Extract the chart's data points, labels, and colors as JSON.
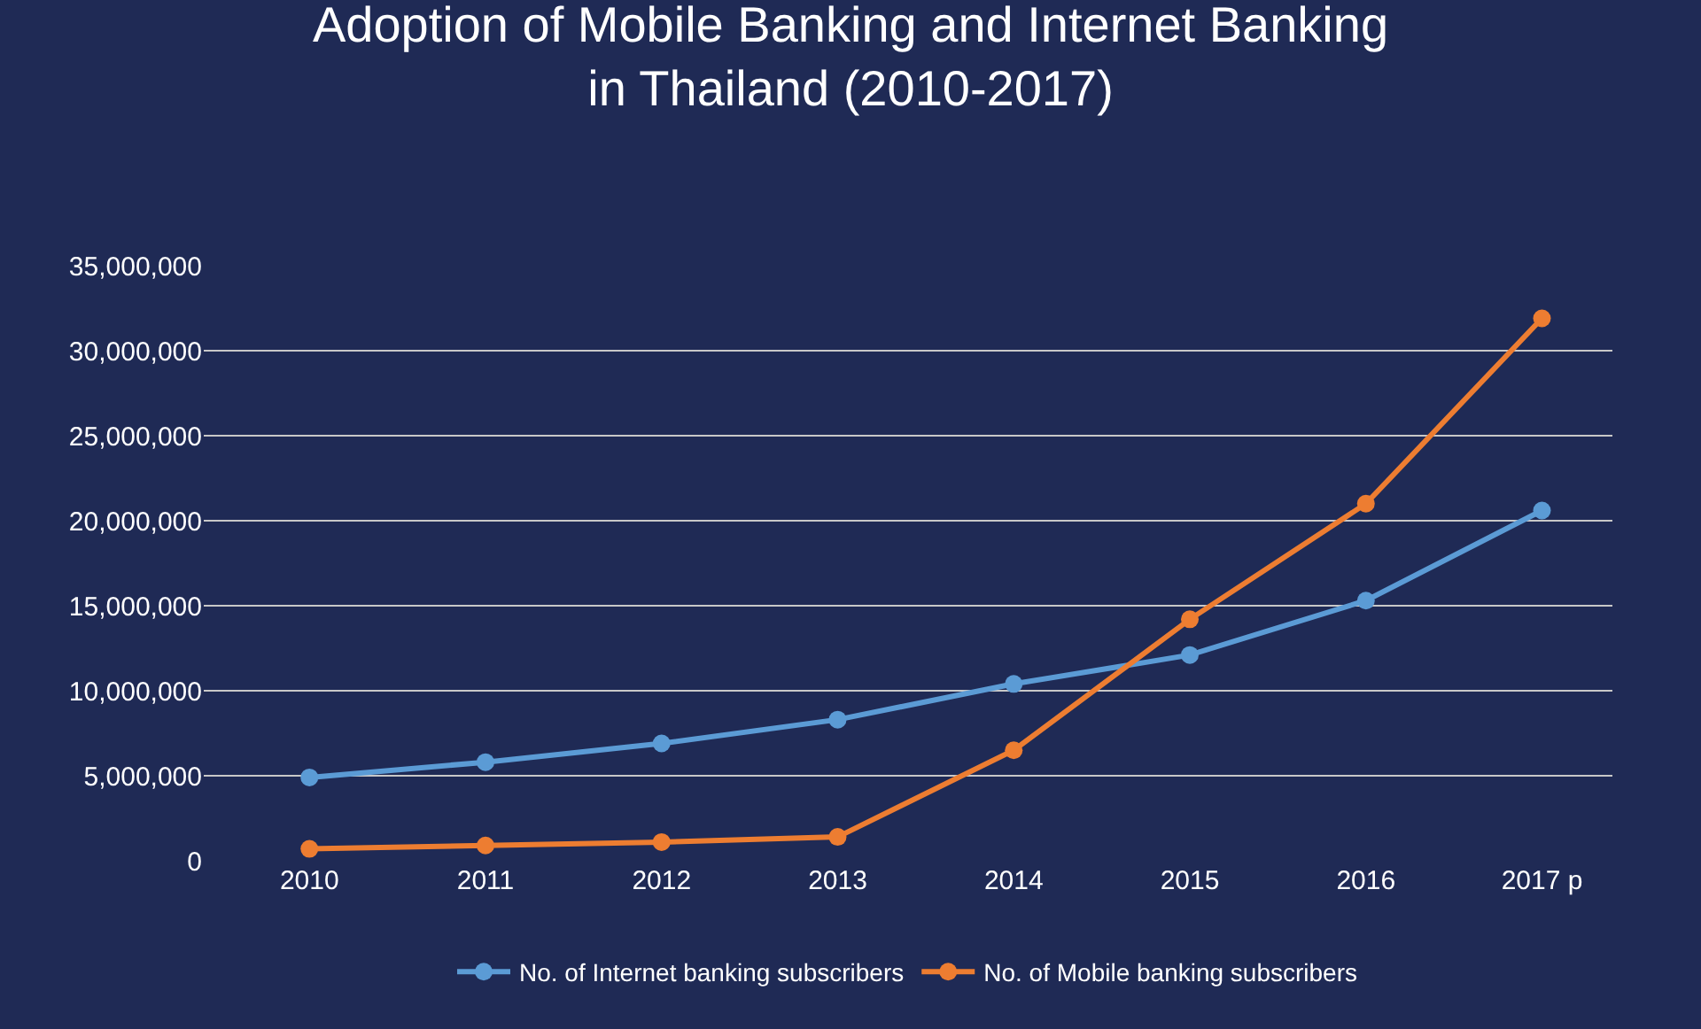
{
  "chart_data": {
    "type": "line",
    "title": "Adoption of Mobile Banking and Internet Banking\nin Thailand (2010-2017)",
    "categories": [
      "2010",
      "2011",
      "2012",
      "2013",
      "2014",
      "2015",
      "2016",
      "2017 p"
    ],
    "series": [
      {
        "name": "No. of Internet banking subscribers",
        "color": "#5b9bd5",
        "values": [
          4900000,
          5800000,
          6900000,
          8300000,
          10400000,
          12100000,
          15300000,
          20600000
        ]
      },
      {
        "name": "No. of Mobile banking subscribers",
        "color": "#ed7d31",
        "values": [
          700000,
          900000,
          1100000,
          1400000,
          6500000,
          14200000,
          21000000,
          31900000
        ]
      }
    ],
    "ylim": [
      0,
      35000000
    ],
    "yticks": [
      {
        "value": 0,
        "label": "0"
      },
      {
        "value": 5000000,
        "label": "5,000,000"
      },
      {
        "value": 10000000,
        "label": "10,000,000"
      },
      {
        "value": 15000000,
        "label": "15,000,000"
      },
      {
        "value": 20000000,
        "label": "20,000,000"
      },
      {
        "value": 25000000,
        "label": "25,000,000"
      },
      {
        "value": 30000000,
        "label": "30,000,000"
      },
      {
        "value": 35000000,
        "label": "35,000,000"
      }
    ],
    "grid": "y",
    "legend": "bottom",
    "marker": "circle",
    "line_style": "solid"
  }
}
